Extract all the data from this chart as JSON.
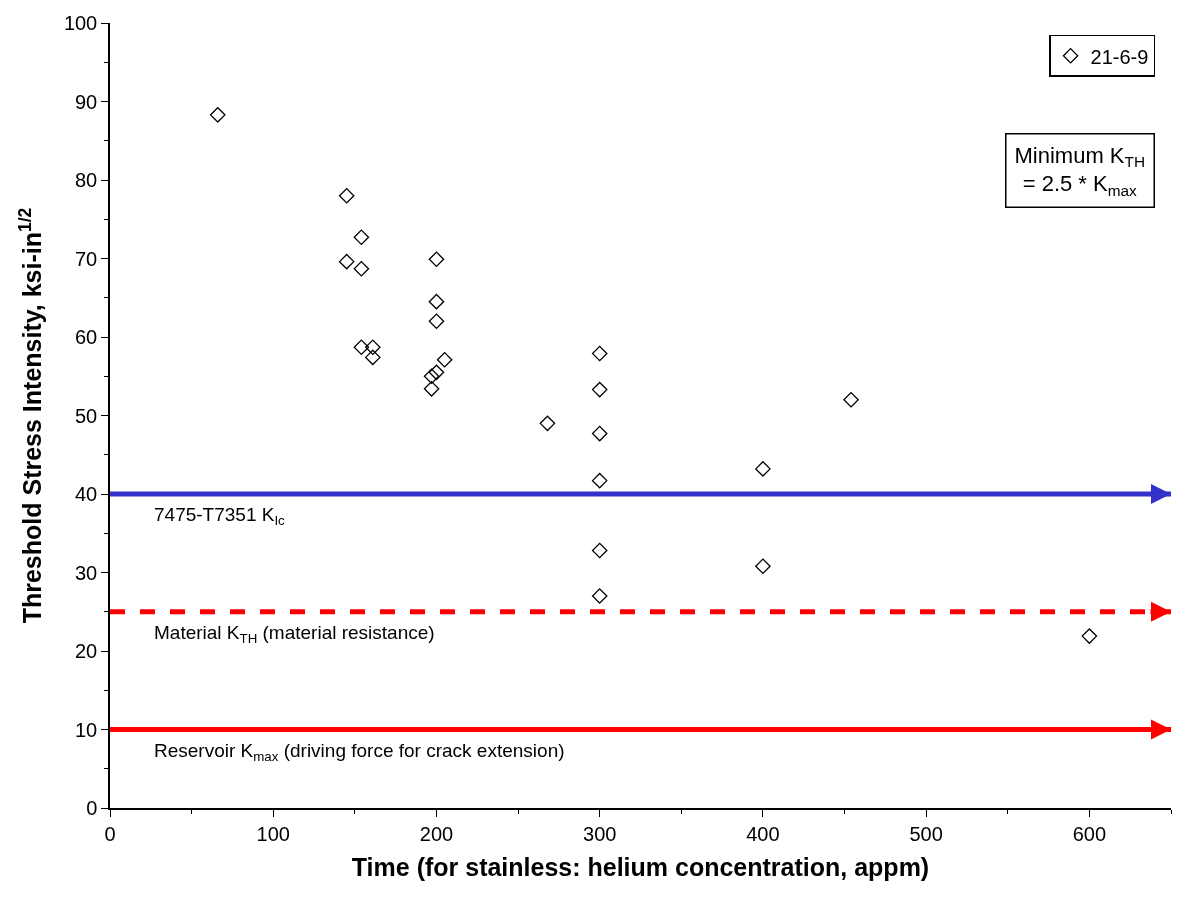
{
  "chart_data": {
    "type": "scatter",
    "xlabel": "Time (for stainless: helium concentration, appm)",
    "ylabel": "Threshold Stress Intensity, ksi-in$^{1/2}$",
    "xlim": [
      0,
      650
    ],
    "xticks": [
      0,
      100,
      200,
      300,
      400,
      500,
      600
    ],
    "ylim": [
      0,
      100
    ],
    "yticks": [
      0,
      10,
      20,
      30,
      40,
      50,
      60,
      70,
      80,
      90,
      100
    ],
    "legend": "top right",
    "marker": "diamond",
    "series": [
      {
        "name": "21-6-9",
        "color": "#000000",
        "x": [
          66,
          145,
          154,
          145,
          154,
          154,
          161,
          161,
          200,
          200,
          200,
          200,
          197,
          197,
          205,
          268,
          300,
          300,
          300,
          300,
          300,
          300,
          400,
          400,
          454,
          600
        ],
        "values": [
          88.3,
          78,
          72.7,
          69.6,
          68.7,
          58.7,
          58.7,
          57.4,
          69.9,
          64.5,
          62,
          55.5,
          55,
          53.4,
          57.1,
          49,
          57.9,
          53.3,
          47.7,
          41.7,
          32.8,
          27,
          43.2,
          30.8,
          52,
          21.9
        ]
      }
    ],
    "ref_lines": [
      {
        "axis": "y",
        "value": 40,
        "label": "7475-T7351 K$_{Ic}$",
        "color": "#3333cc",
        "line_style": "solid"
      },
      {
        "axis": "y",
        "value": 25,
        "label": "Material K$_{TH}$ (material resistance)",
        "color": "#ff0000",
        "line_style": "dashed"
      },
      {
        "axis": "y",
        "value": 10,
        "label": "Reservoir K$_{max}$ (driving force for crack extension)",
        "color": "#ff0000",
        "line_style": "solid"
      }
    ],
    "annotations": [
      "Minimum K$_{TH}$\n= 2.5 * K$_{max}$"
    ]
  }
}
